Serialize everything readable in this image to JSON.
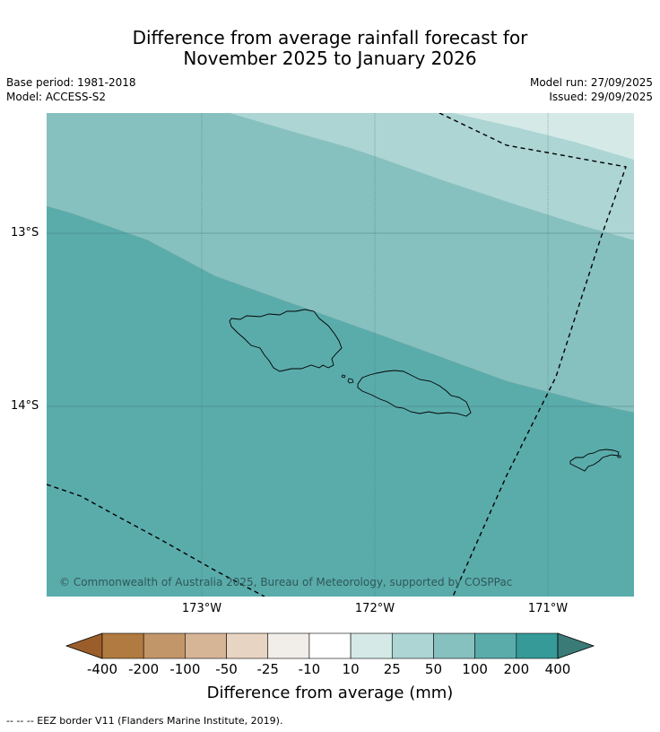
{
  "title_line1": "Difference from average rainfall forecast for",
  "title_line2": "November 2025 to January 2026",
  "base_period": "Base period: 1981-2018",
  "model": "Model: ACCESS-S2",
  "model_run": "Model run: 27/09/2025",
  "issued": "Issued: 29/09/2025",
  "latitude_labels": [
    "13°S",
    "14°S"
  ],
  "longitude_labels": [
    "173°W",
    "172°W",
    "171°W"
  ],
  "copyright": "© Commonwealth of Australia 2025, Bureau of Meteorology, supported by COSPPac",
  "colorbar": {
    "title": "Difference from average (mm)",
    "ticks": [
      "-400",
      "-200",
      "-100",
      "-50",
      "-25",
      "-10",
      "10",
      "25",
      "50",
      "100",
      "200",
      "400"
    ],
    "colors": [
      "#9b5e2a",
      "#b07a40",
      "#c39669",
      "#d6b596",
      "#e8d4c3",
      "#f1ede9",
      "#ffffff",
      "#d5eae7",
      "#acd5d4",
      "#86c0bf",
      "#5aacab",
      "#359a98",
      "#3a7b78"
    ]
  },
  "legend_footnote": "--  --  -- EEZ border V11 (Flanders Marine Institute, 2019).",
  "map_colors": {
    "band_200": "#5aacab",
    "band_100": "#86c0bf",
    "band_50": "#acd5d4",
    "band_25": "#d5eae7",
    "gridline": "#3d6e6c"
  }
}
